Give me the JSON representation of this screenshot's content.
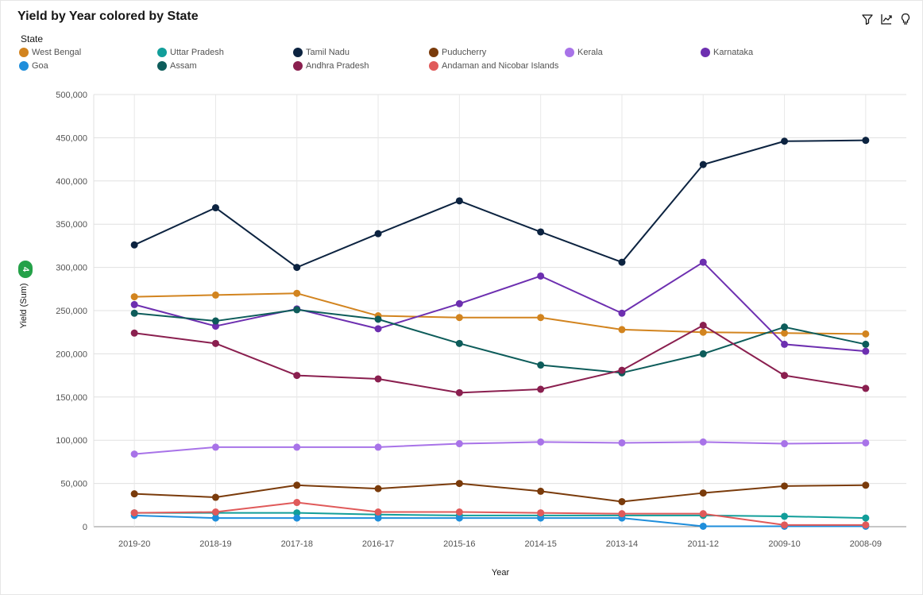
{
  "chart_data": {
    "type": "line",
    "title": "Yield by Year colored by State",
    "xlabel": "Year",
    "ylabel": "Yield (Sum)",
    "legend_title": "State",
    "legend_position": "top-left",
    "grid": true,
    "filter_count": "4",
    "ylim": [
      0,
      500000
    ],
    "y_ticks": [
      0,
      50000,
      100000,
      150000,
      200000,
      250000,
      300000,
      350000,
      400000,
      450000,
      500000
    ],
    "y_tick_labels": [
      "0",
      "50,000",
      "100,000",
      "150,000",
      "200,000",
      "250,000",
      "300,000",
      "350,000",
      "400,000",
      "450,000",
      "500,000"
    ],
    "categories": [
      "2019-20",
      "2018-19",
      "2017-18",
      "2016-17",
      "2015-16",
      "2014-15",
      "2013-14",
      "2011-12",
      "2009-10",
      "2008-09"
    ],
    "series": [
      {
        "name": "West Bengal",
        "color": "#d2841f",
        "values": [
          266000,
          268000,
          270000,
          244000,
          242000,
          242000,
          228000,
          225000,
          224000,
          223000
        ]
      },
      {
        "name": "Uttar Pradesh",
        "color": "#129e9a",
        "values": [
          16000,
          16000,
          16000,
          14000,
          13000,
          13000,
          13000,
          13000,
          12000,
          10000
        ]
      },
      {
        "name": "Tamil Nadu",
        "color": "#0c2340",
        "values": [
          326000,
          369000,
          300000,
          339000,
          377000,
          341000,
          306000,
          419000,
          446000,
          447000
        ]
      },
      {
        "name": "Puducherry",
        "color": "#7a3b0b",
        "values": [
          38000,
          34000,
          48000,
          44000,
          50000,
          41000,
          29000,
          39000,
          47000,
          48000
        ]
      },
      {
        "name": "Kerala",
        "color": "#a873e8",
        "values": [
          84000,
          92000,
          92000,
          92000,
          96000,
          98000,
          97000,
          98000,
          96000,
          97000
        ]
      },
      {
        "name": "Karnataka",
        "color": "#6d2fb0",
        "values": [
          257000,
          232000,
          252000,
          229000,
          258000,
          290000,
          247000,
          306000,
          211000,
          203000
        ]
      },
      {
        "name": "Goa",
        "color": "#1f8edb",
        "values": [
          13000,
          10000,
          10000,
          10000,
          10000,
          10000,
          10000,
          500,
          500,
          500
        ]
      },
      {
        "name": "Assam",
        "color": "#0d5c5a",
        "values": [
          247000,
          238000,
          251000,
          240000,
          212000,
          187000,
          178000,
          200000,
          231000,
          211000
        ]
      },
      {
        "name": "Andhra Pradesh",
        "color": "#8a1f4f",
        "values": [
          224000,
          212000,
          175000,
          171000,
          155000,
          159000,
          181000,
          233000,
          175000,
          160000
        ]
      },
      {
        "name": "Andaman and Nicobar Islands",
        "color": "#e05a5a",
        "values": [
          16000,
          17000,
          28000,
          17000,
          17000,
          16000,
          15000,
          15000,
          2000,
          2000
        ]
      }
    ]
  }
}
